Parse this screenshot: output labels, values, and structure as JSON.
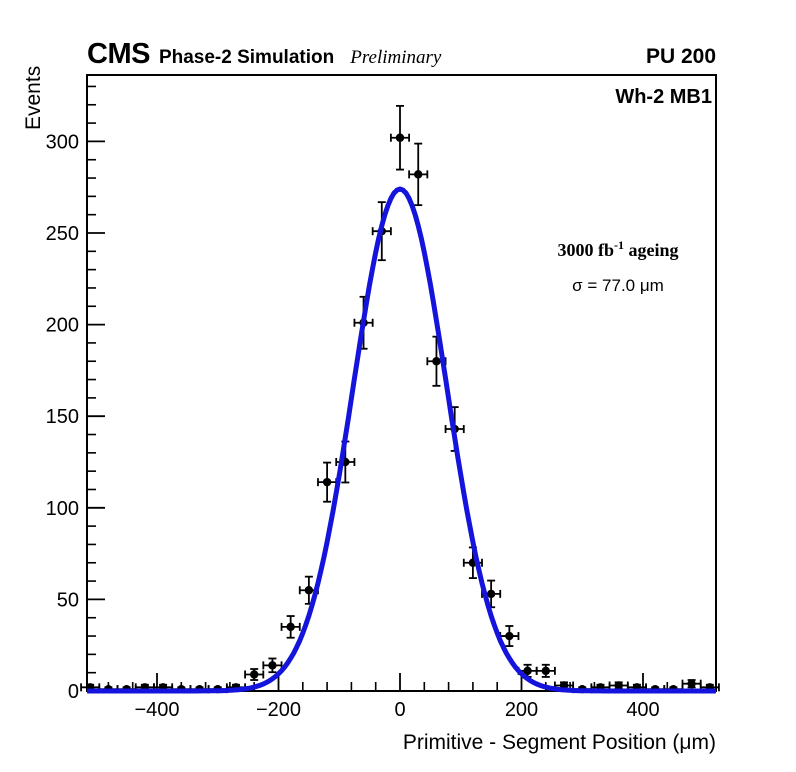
{
  "header": {
    "experiment": "CMS",
    "label": "Phase-2 Simulation",
    "sublabel": "Preliminary",
    "pileup": "PU 200"
  },
  "plot": {
    "region_label": "Wh-2 MB1"
  },
  "annotations": {
    "lumi_prefix": "3000 fb",
    "lumi_sup": "-1",
    "lumi_suffix": " ageing",
    "sigma": "σ = 77.0 μm"
  },
  "chart_data": {
    "type": "scatter",
    "title": "",
    "xlabel": "Primitive - Segment Position (μm)",
    "ylabel": "Events",
    "xlim": [
      -515,
      520
    ],
    "ylim": [
      0,
      336
    ],
    "grid": false,
    "legend": "none",
    "bin_width_um": 30,
    "x": [
      -510,
      -480,
      -450,
      -420,
      -390,
      -360,
      -330,
      -300,
      -270,
      -240,
      -210,
      -180,
      -150,
      -120,
      -90,
      -60,
      -30,
      0,
      30,
      60,
      90,
      120,
      150,
      180,
      210,
      240,
      270,
      300,
      330,
      360,
      390,
      420,
      450,
      480,
      510
    ],
    "values": [
      2,
      1,
      1,
      2,
      2,
      1,
      1,
      1,
      2,
      9,
      14,
      35,
      55,
      114,
      125,
      201,
      251,
      302,
      282,
      180,
      143,
      70,
      53,
      30,
      11,
      11,
      3,
      1,
      2,
      3,
      2,
      1,
      1,
      4,
      2
    ],
    "y_errors": "poisson-sqrt",
    "x_half_bin_width_um": 15,
    "x_ticks": [
      {
        "v": -400,
        "label": "−400"
      },
      {
        "v": -200,
        "label": "−200"
      },
      {
        "v": 0,
        "label": "0"
      },
      {
        "v": 200,
        "label": "200"
      },
      {
        "v": 400,
        "label": "400"
      }
    ],
    "y_ticks": [
      {
        "v": 0,
        "label": "0"
      },
      {
        "v": 50,
        "label": "50"
      },
      {
        "v": 100,
        "label": "100"
      },
      {
        "v": 150,
        "label": "150"
      },
      {
        "v": 200,
        "label": "200"
      },
      {
        "v": 250,
        "label": "250"
      },
      {
        "v": 300,
        "label": "300"
      }
    ],
    "fit": {
      "type": "gaussian",
      "amplitude": 274,
      "mean": 0,
      "sigma_um": 77,
      "color": "#1414dd"
    },
    "marker_color": "#000000"
  }
}
